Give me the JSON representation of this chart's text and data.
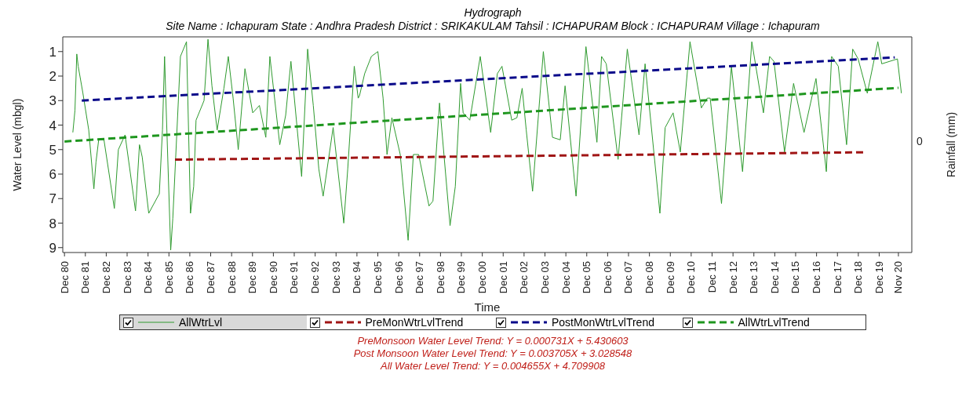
{
  "chart_data": {
    "type": "line",
    "title": "Hydrograph",
    "subtitle": "Site Name : Ichapuram  State : Andhra Pradesh District : SRIKAKULAM  Tahsil : ICHAPURAM  Block : ICHAPURAM Village : Ichapuram",
    "xlabel": "Time",
    "ylabel": "Water Level (mbgl)",
    "y2label": "Rainfall (mm)",
    "xlim": [
      "1980-11-01",
      "2021-06-23"
    ],
    "xticks": [
      {
        "value": "1980-12-01",
        "label": "Dec 80"
      },
      {
        "value": "1981-12-01",
        "label": "Dec 81"
      },
      {
        "value": "1982-12-01",
        "label": "Dec 82"
      },
      {
        "value": "1983-12-01",
        "label": "Dec 83"
      },
      {
        "value": "1984-12-01",
        "label": "Dec 84"
      },
      {
        "value": "1985-12-01",
        "label": "Dec 85"
      },
      {
        "value": "1986-12-01",
        "label": "Dec 86"
      },
      {
        "value": "1987-12-01",
        "label": "Dec 87"
      },
      {
        "value": "1988-12-01",
        "label": "Dec 88"
      },
      {
        "value": "1989-12-01",
        "label": "Dec 89"
      },
      {
        "value": "1990-12-01",
        "label": "Dec 90"
      },
      {
        "value": "1991-12-01",
        "label": "Dec 91"
      },
      {
        "value": "1992-12-01",
        "label": "Dec 92"
      },
      {
        "value": "1993-12-01",
        "label": "Dec 93"
      },
      {
        "value": "1994-12-01",
        "label": "Dec 94"
      },
      {
        "value": "1995-12-01",
        "label": "Dec 95"
      },
      {
        "value": "1996-12-01",
        "label": "Dec 96"
      },
      {
        "value": "1997-12-01",
        "label": "Dec 97"
      },
      {
        "value": "1998-12-01",
        "label": "Dec 98"
      },
      {
        "value": "1999-12-01",
        "label": "Dec 99"
      },
      {
        "value": "2000-12-01",
        "label": "Dec 00"
      },
      {
        "value": "2001-12-01",
        "label": "Dec 01"
      },
      {
        "value": "2002-12-01",
        "label": "Dec 02"
      },
      {
        "value": "2003-12-01",
        "label": "Dec 03"
      },
      {
        "value": "2004-12-01",
        "label": "Dec 04"
      },
      {
        "value": "2005-12-01",
        "label": "Dec 05"
      },
      {
        "value": "2006-12-01",
        "label": "Dec 06"
      },
      {
        "value": "2007-12-01",
        "label": "Dec 07"
      },
      {
        "value": "2008-12-01",
        "label": "Dec 08"
      },
      {
        "value": "2009-12-01",
        "label": "Dec 09"
      },
      {
        "value": "2010-12-01",
        "label": "Dec 10"
      },
      {
        "value": "2011-12-01",
        "label": "Dec 11"
      },
      {
        "value": "2012-12-01",
        "label": "Dec 12"
      },
      {
        "value": "2013-12-01",
        "label": "Dec 13"
      },
      {
        "value": "2014-12-01",
        "label": "Dec 14"
      },
      {
        "value": "2015-12-01",
        "label": "Dec 15"
      },
      {
        "value": "2016-12-01",
        "label": "Dec 16"
      },
      {
        "value": "2017-12-01",
        "label": "Dec 17"
      },
      {
        "value": "2018-12-01",
        "label": "Dec 18"
      },
      {
        "value": "2019-12-01",
        "label": "Dec 19"
      },
      {
        "value": "2020-11-01",
        "label": "Nov 20"
      }
    ],
    "ylim": [
      9.2,
      0.4
    ],
    "yticks": [
      1,
      2,
      3,
      4,
      5,
      6,
      7,
      8,
      9
    ],
    "grid": false,
    "legend": "bottom",
    "marker": "none",
    "series": [
      {
        "name": "AllWtrLvl",
        "color": "#2e9a2e",
        "line_style": "solid",
        "x": [
          "1981-04-26",
          "1981-06-02",
          "1981-07-04",
          "1981-07-29",
          "1981-10-19",
          "1982-01-29",
          "1982-04-29",
          "1982-06-05",
          "1982-07-22",
          "1982-10-22",
          "1983-04-22",
          "1983-07-01",
          "1983-10-26",
          "1984-04-26",
          "1984-07-04",
          "1984-08-21",
          "1984-12-13",
          "1985-06-16",
          "1985-08-10",
          "1985-09-16",
          "1985-10-08",
          "1986-01-01",
          "1986-02-07",
          "1986-06-20",
          "1986-10-04",
          "1986-12-13",
          "1987-02-07",
          "1987-03-20",
          "1987-08-07",
          "1987-10-15",
          "1987-12-23",
          "1988-03-23",
          "1988-07-19",
          "1988-10-04",
          "1988-12-27",
          "1989-03-27",
          "1989-07-22",
          "1989-12-05",
          "1990-04-01",
          "1990-07-22",
          "1990-10-01",
          "1991-03-23",
          "1991-07-04",
          "1991-10-04",
          "1992-04-08",
          "1992-07-22",
          "1992-10-29",
          "1993-02-03",
          "1993-04-19",
          "1993-10-11",
          "1994-04-15",
          "1994-06-23",
          "1994-10-15",
          "1994-12-23",
          "1995-01-15",
          "1995-04-15",
          "1995-08-10",
          "1995-12-02",
          "1996-03-02",
          "1996-05-10",
          "1996-08-03",
          "1996-12-27",
          "1997-05-14",
          "1997-08-14",
          "1997-11-14",
          "1998-05-14",
          "1998-07-22",
          "1998-11-14",
          "1999-05-17",
          "1999-08-17",
          "1999-11-17",
          "2000-01-01",
          "2000-04-26",
          "2000-10-26",
          "2001-04-26",
          "2001-08-21",
          "2001-11-10",
          "2002-04-29",
          "2002-07-29",
          "2002-10-29",
          "2003-01-08",
          "2003-04-29",
          "2003-11-03",
          "2004-04-11",
          "2004-08-25",
          "2004-11-17",
          "2005-05-28",
          "2005-11-17",
          "2006-05-28",
          "2006-08-17",
          "2006-11-07",
          "2007-06-02",
          "2007-11-10",
          "2008-06-02",
          "2008-09-16",
          "2009-06-02",
          "2009-09-02",
          "2010-01-19",
          "2010-05-25",
          "2010-11-10",
          "2011-05-28",
          "2011-09-09",
          "2011-10-29",
          "2012-05-14",
          "2012-11-03",
          "2013-05-17",
          "2013-10-26",
          "2014-05-17",
          "2014-09-02",
          "2014-11-17",
          "2015-05-21",
          "2015-10-26",
          "2016-04-26",
          "2016-11-21",
          "2017-05-21",
          "2017-08-21",
          "2017-12-16",
          "2018-05-10",
          "2018-08-25",
          "2018-11-28",
          "2019-05-07",
          "2019-11-07",
          "2020-01-15",
          "2020-10-15",
          "2020-12-23"
        ],
        "values": [
          4.3,
          3.4,
          1.1,
          1.6,
          2.7,
          4.2,
          6.6,
          5.5,
          4.6,
          4.6,
          7.4,
          5.0,
          4.4,
          7.5,
          4.8,
          5.3,
          7.6,
          6.8,
          4.2,
          1.2,
          2.9,
          9.1,
          7.8,
          1.2,
          0.6,
          7.6,
          6.5,
          3.8,
          3.0,
          0.5,
          2.4,
          4.2,
          2.5,
          1.2,
          2.9,
          5.0,
          1.7,
          3.5,
          3.2,
          4.5,
          1.2,
          4.8,
          3.6,
          1.4,
          6.1,
          0.9,
          3.2,
          5.8,
          6.9,
          4.1,
          8.0,
          5.8,
          1.6,
          2.9,
          2.8,
          1.9,
          1.2,
          1.0,
          2.9,
          5.2,
          3.7,
          5.2,
          8.7,
          5.2,
          5.2,
          7.3,
          7.1,
          3.1,
          8.1,
          6.5,
          2.3,
          3.5,
          3.8,
          1.2,
          4.3,
          1.9,
          1.6,
          3.8,
          3.7,
          2.5,
          4.2,
          6.7,
          1.0,
          4.5,
          4.6,
          2.4,
          6.9,
          0.8,
          4.7,
          1.2,
          1.5,
          5.4,
          0.9,
          4.4,
          1.5,
          7.6,
          4.1,
          3.5,
          5.1,
          0.6,
          3.3,
          2.9,
          2.9,
          7.2,
          1.6,
          5.9,
          0.6,
          3.5,
          1.2,
          1.4,
          5.1,
          2.3,
          4.3,
          2.1,
          5.9,
          1.2,
          1.6,
          4.8,
          0.9,
          1.3,
          2.7,
          0.6,
          1.5,
          1.3,
          2.7
        ]
      },
      {
        "name": "PreMonWtrLvlTrend",
        "color": "#a01515",
        "line_style": "dashed",
        "x": [
          "1986-03-17",
          "2019-03-20"
        ],
        "values": [
          5.41,
          5.11
        ]
      },
      {
        "name": "PostMonWtrLvlTrend",
        "color": "#0a0a8a",
        "line_style": "dashed",
        "x": [
          "1981-09-29",
          "2020-08-29"
        ],
        "values": [
          3.0,
          1.24
        ]
      },
      {
        "name": "AllWtrLvlTrend",
        "color": "#1e961e",
        "line_style": "dashed",
        "x": [
          "1980-12-01",
          "2020-11-01"
        ],
        "values": [
          4.67,
          2.48
        ]
      }
    ],
    "annotations": [
      "0",
      "PreMonsoon Water Level Trend: Y = 0.000731X + 5.430603",
      "Post Monsoon Water Level Trend: Y = 0.003705X + 3.028548",
      "All Water Level Trend: Y = 0.004655X + 4.709908"
    ]
  }
}
